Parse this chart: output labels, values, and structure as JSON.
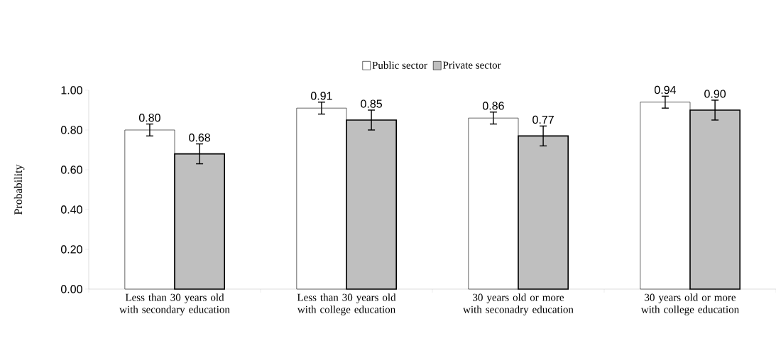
{
  "chart_data": {
    "type": "bar",
    "ylabel": "Probability",
    "categories": [
      "Less than 30 years old with secondary education",
      "Less than 30 years old with college education",
      "30 years old or more with seconadry education",
      "30 years old or more with college education"
    ],
    "series": [
      {
        "name": "Public sector",
        "color": "#ffffff",
        "values": [
          0.8,
          0.91,
          0.86,
          0.94
        ],
        "errors": [
          0.03,
          0.03,
          0.03,
          0.03
        ],
        "value_labels": [
          "0.80",
          "0.91",
          "0.86",
          "0.94"
        ]
      },
      {
        "name": "Private sector",
        "color": "#bfbfbf",
        "values": [
          0.68,
          0.85,
          0.77,
          0.9
        ],
        "errors": [
          0.05,
          0.05,
          0.05,
          0.05
        ],
        "value_labels": [
          "0.68",
          "0.85",
          "0.77",
          "0.90"
        ]
      }
    ],
    "ylim": [
      0,
      1
    ],
    "yticks": [
      {
        "value": 0,
        "label": "0.00"
      },
      {
        "value": 0.2,
        "label": "0.20"
      },
      {
        "value": 0.4,
        "label": "0.40"
      },
      {
        "value": 0.6,
        "label": "0.60"
      },
      {
        "value": 0.8,
        "label": "0.80"
      },
      {
        "value": 1,
        "label": "1.00"
      }
    ],
    "legend": "top",
    "grid": false
  }
}
